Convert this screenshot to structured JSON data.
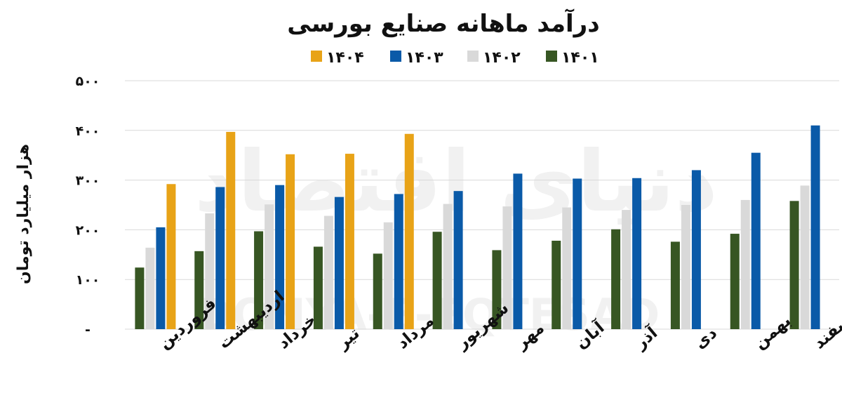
{
  "chart_data": {
    "type": "bar",
    "title": "درآمد ماهانه صنایع بورسی",
    "ylabel": "هزار میلیارد تومان",
    "xlabel": "",
    "ylim": [
      0,
      500
    ],
    "yticks": [
      {
        "value": 0,
        "label": "-"
      },
      {
        "value": 100,
        "label": "۱۰۰"
      },
      {
        "value": 200,
        "label": "۲۰۰"
      },
      {
        "value": 300,
        "label": "۳۰۰"
      },
      {
        "value": 400,
        "label": "۴۰۰"
      },
      {
        "value": 500,
        "label": "۵۰۰"
      }
    ],
    "grid": true,
    "legend_position": "top",
    "categories": [
      "فروردین",
      "اردیبهشت",
      "خرداد",
      "تیر",
      "مرداد",
      "شهریور",
      "مهر",
      "آبان",
      "آذر",
      "دی",
      "بهمن",
      "اسفند"
    ],
    "series": [
      {
        "name": "۱۴۰۱",
        "color": "#375623",
        "values": [
          124,
          157,
          197,
          166,
          152,
          196,
          159,
          178,
          201,
          176,
          192,
          258
        ]
      },
      {
        "name": "۱۴۰۲",
        "color": "#d9d9d9",
        "values": [
          164,
          233,
          251,
          228,
          215,
          252,
          247,
          245,
          240,
          250,
          260,
          289
        ]
      },
      {
        "name": "۱۴۰۳",
        "color": "#0a5aa8",
        "values": [
          205,
          286,
          290,
          266,
          272,
          278,
          313,
          303,
          304,
          320,
          355,
          410
        ]
      },
      {
        "name": "۱۴۰۴",
        "color": "#e8a317",
        "values": [
          292,
          397,
          352,
          353,
          393,
          null,
          null,
          null,
          null,
          null,
          null,
          null
        ]
      }
    ],
    "legend_order": [
      "۱۴۰۴",
      "۱۴۰۳",
      "۱۴۰۲",
      "۱۴۰۱"
    ]
  },
  "watermark": {
    "persian": "دنیای اقتصاد",
    "latin": "DONYA-E-EQTESAD"
  }
}
